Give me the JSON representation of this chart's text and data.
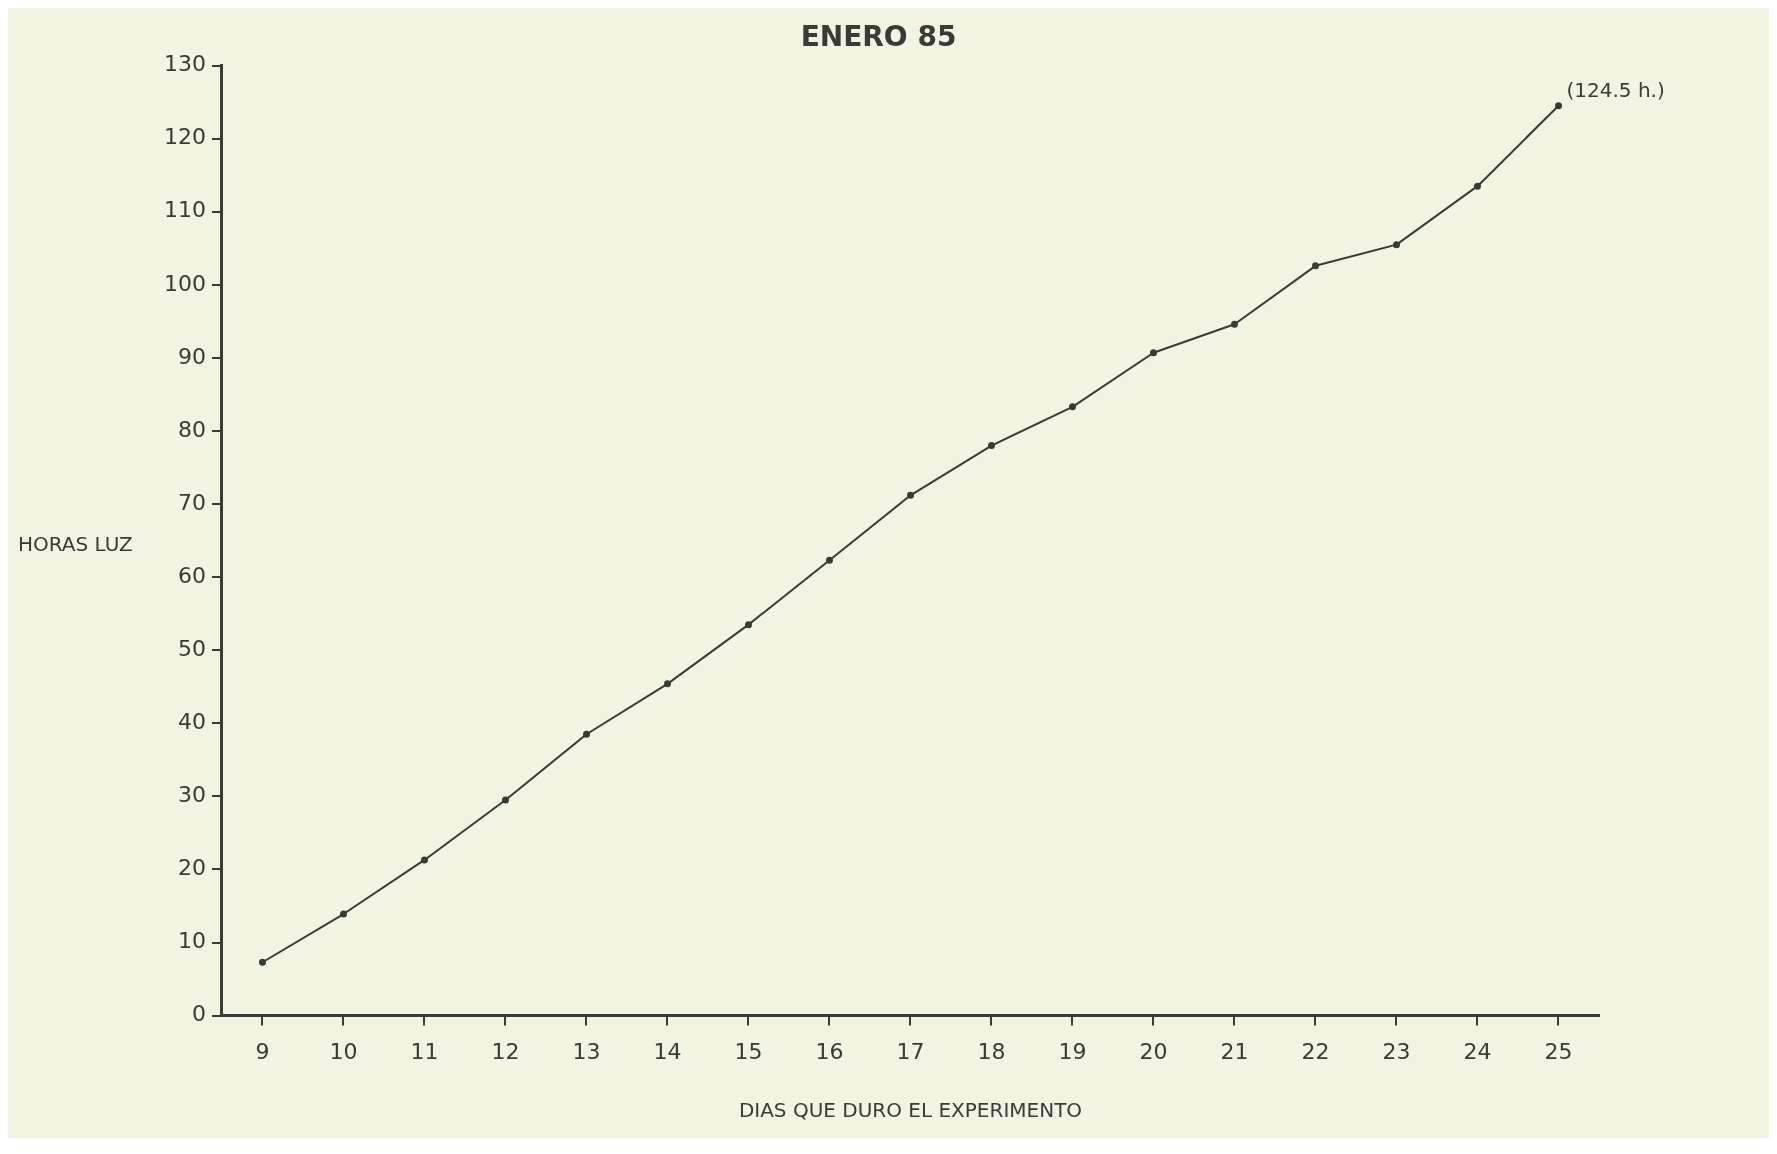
{
  "chart_data": {
    "type": "line",
    "title": "ENERO 85",
    "xlabel": "DIAS QUE DURO EL EXPERIMENTO",
    "ylabel": "HORAS LUZ",
    "categories": [
      "9",
      "10",
      "11",
      "12",
      "13",
      "14",
      "15",
      "16",
      "17",
      "18",
      "19",
      "20",
      "21",
      "22",
      "23",
      "24",
      "25"
    ],
    "series": [
      {
        "color": "#3a3a36",
        "values": [
          7.3,
          13.9,
          21.3,
          29.5,
          38.5,
          45.4,
          53.5,
          62.3,
          71.2,
          78.0,
          83.3,
          90.7,
          94.6,
          102.6,
          105.5,
          113.5,
          124.5
        ]
      }
    ],
    "ylim": [
      0,
      130
    ],
    "yticks": [
      0,
      10,
      20,
      30,
      40,
      50,
      60,
      70,
      80,
      90,
      100,
      110,
      120,
      130
    ],
    "annotations": [
      {
        "text": "(124.5 h.)",
        "x": "25",
        "y": 124.5
      }
    ],
    "marker": "circle",
    "line_style": "solid",
    "grid": false,
    "legend": false
  }
}
